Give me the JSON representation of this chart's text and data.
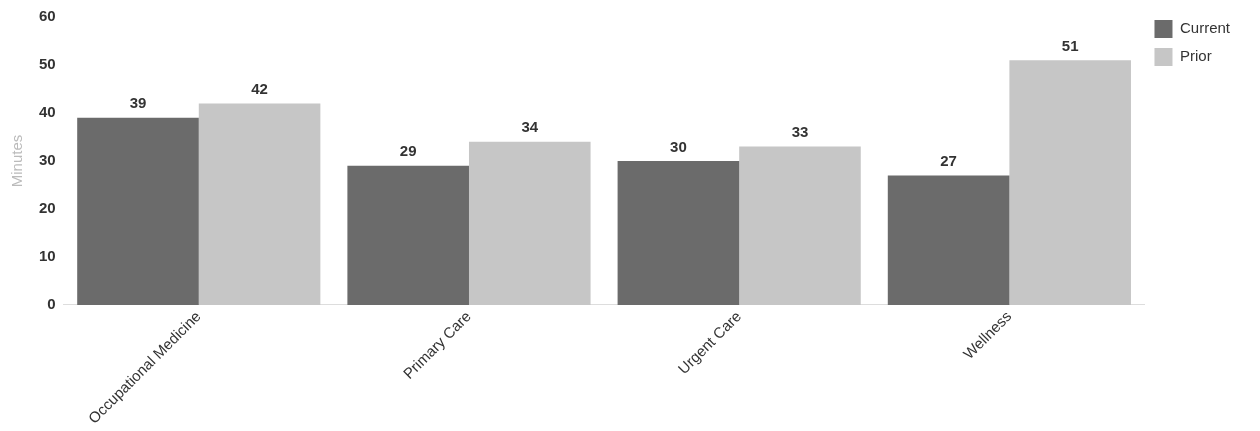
{
  "chart_data": {
    "type": "bar",
    "ylabel": "Minutes",
    "categories": [
      "Occupational Medicine",
      "Primary Care",
      "Urgent Care",
      "Wellness"
    ],
    "series": [
      {
        "name": "Current",
        "color": "#6b6b6b",
        "values": [
          39,
          29,
          30,
          27
        ]
      },
      {
        "name": "Prior",
        "color": "#c6c6c6",
        "values": [
          42,
          34,
          33,
          51
        ]
      }
    ],
    "ylim": [
      0,
      60
    ],
    "yticks": [
      0,
      10,
      20,
      30,
      40,
      50,
      60
    ],
    "grid": false,
    "legend": "top right",
    "data_labels": true
  }
}
